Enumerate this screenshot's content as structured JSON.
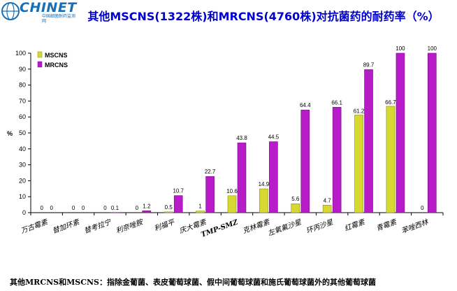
{
  "header": {
    "logo_text": "CHINET",
    "logo_subtext": "中国细菌耐药监测网",
    "title": "其他MSCNS(1322株)和MRCNS(4760株)对抗菌药的耐药率（%）"
  },
  "footnote": "其他MRCNS和MSCNS：指除金葡菌、表皮葡萄球菌、假中间葡萄球菌和施氏葡萄球菌外的其他葡萄球菌",
  "colors": {
    "mscns": "#d8d832",
    "mrcns": "#b81cc8",
    "title": "#0000cc"
  },
  "chart_data": {
    "type": "bar",
    "ylabel": "%",
    "ylim": [
      0,
      100
    ],
    "yticks": [
      0,
      10,
      20,
      30,
      40,
      50,
      60,
      70,
      80,
      90,
      100
    ],
    "grid": false,
    "legend_position": "top-left",
    "categories": [
      "万古霉素",
      "替加环素",
      "替考拉宁",
      "利奈唑胺",
      "利福平",
      "庆大霉素",
      "TMP-SMZ",
      "克林霉素",
      "左氧氟沙星",
      "环丙沙星",
      "红霉素",
      "青霉素",
      "苯唑西林"
    ],
    "series": [
      {
        "name": "MSCNS",
        "values": [
          0,
          0,
          0,
          0,
          0.5,
          1,
          10.6,
          14.9,
          5.6,
          4.7,
          61.2,
          66.7,
          0
        ],
        "labels": [
          "0",
          "0",
          "0",
          "0",
          "0.5",
          "1",
          "10.6",
          "14.9",
          "5.6",
          "4.7",
          "61.2",
          "66.7",
          "0"
        ]
      },
      {
        "name": "MRCNS",
        "values": [
          0,
          0,
          0.1,
          1.2,
          10.7,
          22.7,
          43.8,
          44.5,
          64.4,
          66.1,
          89.7,
          100,
          100
        ],
        "labels": [
          "0",
          "0",
          "0.1",
          "1.2",
          "10.7",
          "22.7",
          "43.8",
          "44.5",
          "64.4",
          "66.1",
          "89.7",
          "100",
          "100"
        ]
      }
    ]
  }
}
